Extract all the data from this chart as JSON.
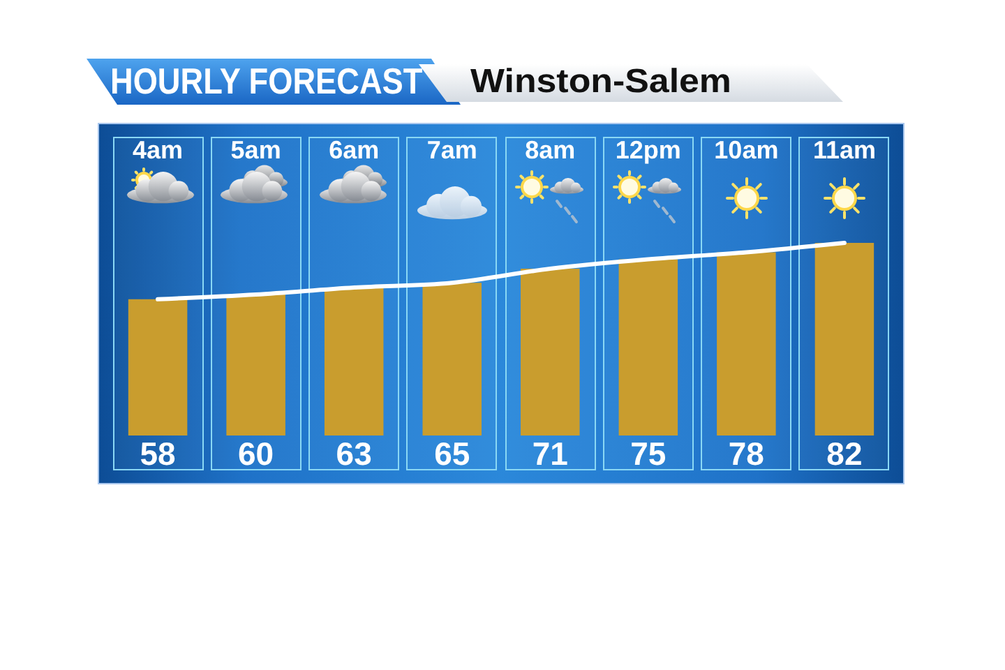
{
  "chart_data": {
    "type": "bar",
    "title": "HOURLY FORECAST",
    "subtitle": "Winston-Salem",
    "categories": [
      "4am",
      "5am",
      "6am",
      "7am",
      "8am",
      "12pm",
      "10am",
      "11am"
    ],
    "series": [
      {
        "color": "#c99d2e",
        "values": [
          58,
          60,
          63,
          65,
          71,
          75,
          78,
          82
        ],
        "value_labels": [
          "58",
          "60",
          "63",
          "65",
          "71",
          "75",
          "78",
          "82"
        ]
      },
      {
        "type": "line",
        "color": "#ffffff",
        "values": [
          58,
          60,
          63,
          65,
          71,
          75,
          78,
          82
        ]
      }
    ]
  }
}
